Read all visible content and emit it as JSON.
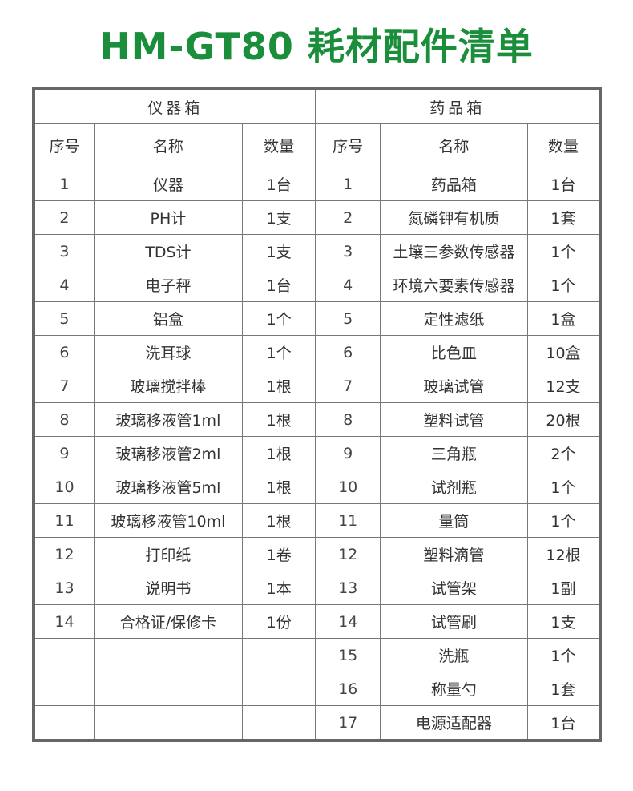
{
  "title": "HM-GT80  耗材配件清单",
  "sections": [
    {
      "name": "仪器箱",
      "headers": [
        "序号",
        "名称",
        "数量"
      ],
      "rows": [
        [
          "1",
          "仪器",
          "1台"
        ],
        [
          "2",
          "PH计",
          "1支"
        ],
        [
          "3",
          "TDS计",
          "1支"
        ],
        [
          "4",
          "电子秤",
          "1台"
        ],
        [
          "5",
          "铝盒",
          "1个"
        ],
        [
          "6",
          "洗耳球",
          "1个"
        ],
        [
          "7",
          "玻璃搅拌棒",
          "1根"
        ],
        [
          "8",
          "玻璃移液管1ml",
          "1根"
        ],
        [
          "9",
          "玻璃移液管2ml",
          "1根"
        ],
        [
          "10",
          "玻璃移液管5ml",
          "1根"
        ],
        [
          "11",
          "玻璃移液管10ml",
          "1根"
        ],
        [
          "12",
          "打印纸",
          "1卷"
        ],
        [
          "13",
          "说明书",
          "1本"
        ],
        [
          "14",
          "合格证/保修卡",
          "1份"
        ]
      ]
    },
    {
      "name": "药品箱",
      "headers": [
        "序号",
        "名称",
        "数量"
      ],
      "rows": [
        [
          "1",
          "药品箱",
          "1台"
        ],
        [
          "2",
          "氮磷钾有机质",
          "1套"
        ],
        [
          "3",
          "土壤三参数传感器",
          "1个"
        ],
        [
          "4",
          "环境六要素传感器",
          "1个"
        ],
        [
          "5",
          "定性滤纸",
          "1盒"
        ],
        [
          "6",
          "比色皿",
          "10盒"
        ],
        [
          "7",
          "玻璃试管",
          "12支"
        ],
        [
          "8",
          "塑料试管",
          "20根"
        ],
        [
          "9",
          "三角瓶",
          "2个"
        ],
        [
          "10",
          "试剂瓶",
          "1个"
        ],
        [
          "11",
          "量筒",
          "1个"
        ],
        [
          "12",
          "塑料滴管",
          "12根"
        ],
        [
          "13",
          "试管架",
          "1副"
        ],
        [
          "14",
          "试管刷",
          "1支"
        ],
        [
          "15",
          "洗瓶",
          "1个"
        ],
        [
          "16",
          "称量勺",
          "1套"
        ],
        [
          "17",
          "电源适配器",
          "1台"
        ]
      ]
    }
  ]
}
